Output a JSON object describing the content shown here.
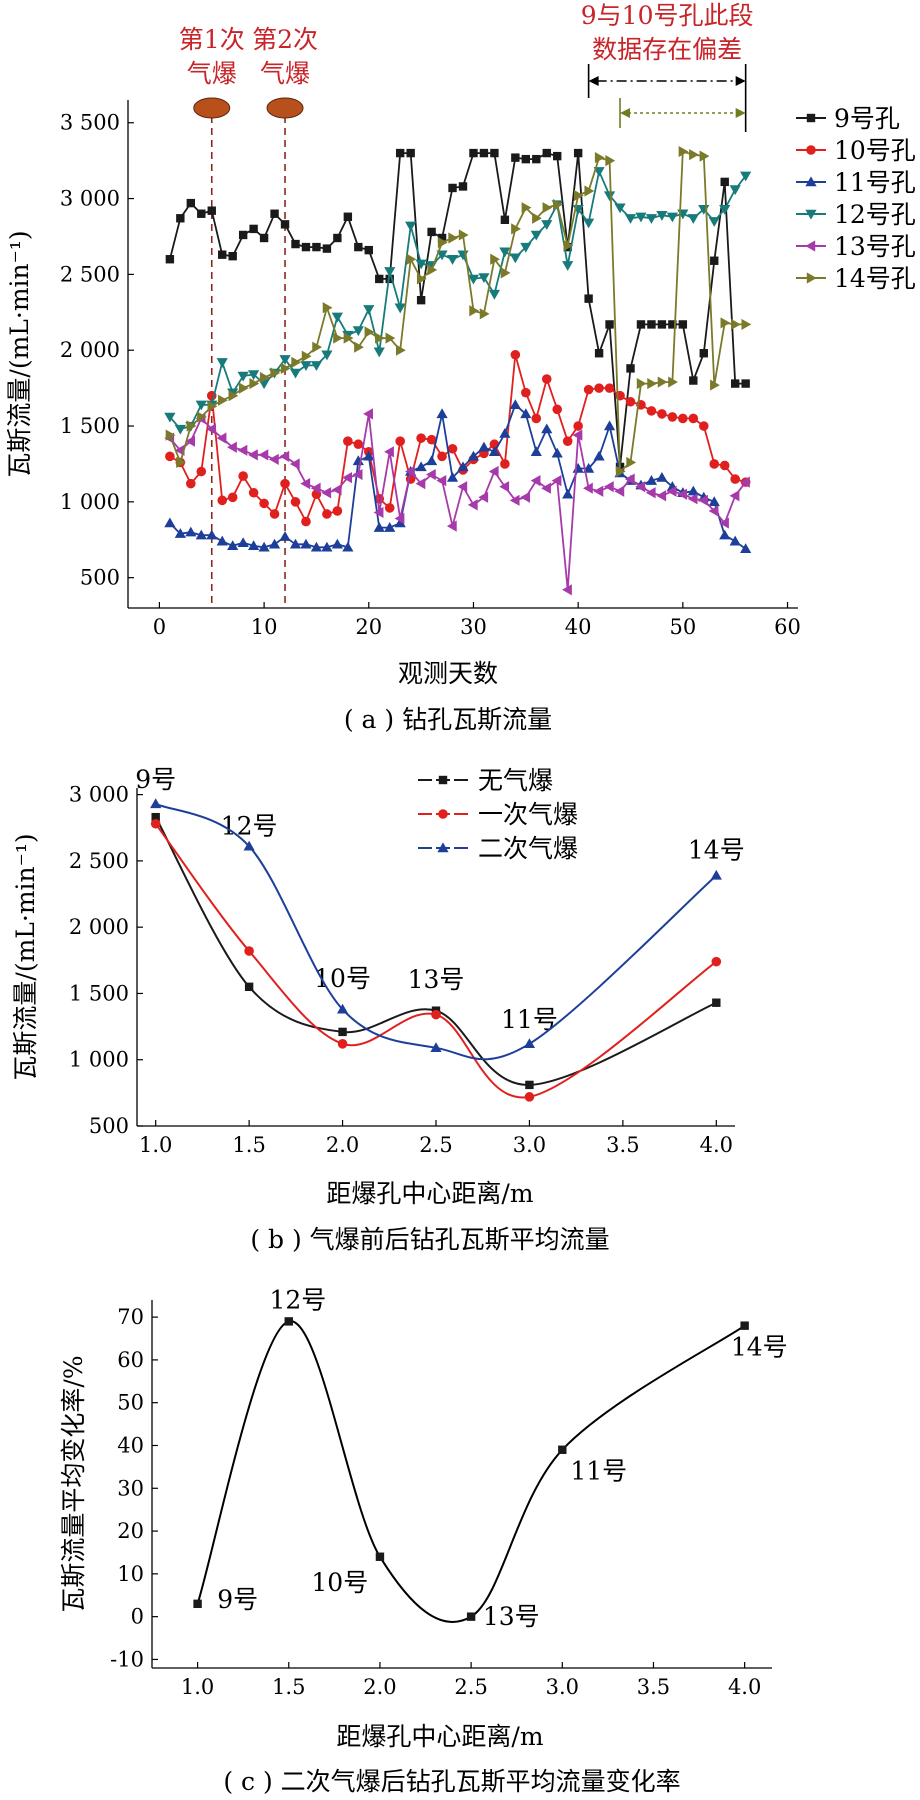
{
  "chart_data": [
    {
      "panel": "a",
      "type": "line",
      "caption": "( a ) 钻孔瓦斯流量",
      "xlabel": "观测天数",
      "ylabel": "瓦斯流量/(mL·min⁻¹)",
      "xlim": [
        -3,
        61
      ],
      "ylim": [
        300,
        3650
      ],
      "xticks": [
        0,
        10,
        20,
        30,
        40,
        50,
        60
      ],
      "yticks": [
        500,
        1000,
        1500,
        2000,
        2500,
        3000,
        3500
      ],
      "ytick_labels": [
        "500",
        "1 000",
        "1 500",
        "2 000",
        "2 500",
        "3 000",
        "3 500"
      ],
      "legend_position": "right",
      "annotations": {
        "blast1_label": [
          "第1次",
          "气爆"
        ],
        "blast1_day": 5,
        "blast2_label": [
          "第2次",
          "气爆"
        ],
        "blast2_day": 12,
        "deviation_label": [
          "9与10号孔此段",
          "数据存在偏差"
        ],
        "deviation_range_outer": [
          41,
          56
        ],
        "deviation_range_inner": [
          44,
          56
        ]
      },
      "series": [
        {
          "name": "9号孔",
          "color": "#1a1a1a",
          "marker": "square",
          "x": [
            1,
            2,
            3,
            4,
            5,
            6,
            7,
            8,
            9,
            10,
            11,
            12,
            13,
            14,
            15,
            16,
            17,
            18,
            19,
            20,
            21,
            22,
            23,
            24,
            25,
            26,
            27,
            28,
            29,
            30,
            31,
            32,
            33,
            34,
            35,
            36,
            37,
            38,
            39,
            40,
            41,
            42,
            43,
            44,
            45,
            46,
            47,
            48,
            49,
            50,
            51,
            52,
            53,
            54,
            55,
            56
          ],
          "y": [
            2600,
            2870,
            2970,
            2900,
            2920,
            2630,
            2620,
            2760,
            2800,
            2740,
            2900,
            2830,
            2700,
            2680,
            2680,
            2670,
            2740,
            2880,
            2680,
            2660,
            2470,
            2470,
            3300,
            3300,
            2330,
            2780,
            2740,
            3070,
            3080,
            3300,
            3300,
            3300,
            2860,
            3270,
            3260,
            3260,
            3300,
            3280,
            2680,
            3300,
            2340,
            1980,
            2170,
            1230,
            1880,
            2170,
            2170,
            2170,
            2170,
            2170,
            1800,
            1980,
            2590,
            3110,
            1780,
            1780
          ]
        },
        {
          "name": "10号孔",
          "color": "#e0201e",
          "marker": "circle",
          "x": [
            1,
            2,
            3,
            4,
            5,
            6,
            7,
            8,
            9,
            10,
            11,
            12,
            13,
            14,
            15,
            16,
            17,
            18,
            19,
            20,
            21,
            22,
            23,
            24,
            25,
            26,
            27,
            28,
            29,
            30,
            31,
            32,
            33,
            34,
            35,
            36,
            37,
            38,
            39,
            40,
            41,
            42,
            43,
            44,
            45,
            46,
            47,
            48,
            49,
            50,
            51,
            52,
            53,
            54,
            55,
            56
          ],
          "y": [
            1300,
            1260,
            1120,
            1200,
            1700,
            1010,
            1030,
            1170,
            1060,
            990,
            920,
            1120,
            1000,
            870,
            1050,
            920,
            940,
            1400,
            1380,
            1330,
            1020,
            960,
            1400,
            1150,
            1420,
            1410,
            1300,
            1350,
            1210,
            1280,
            1320,
            1380,
            1250,
            1970,
            1720,
            1550,
            1810,
            1610,
            1400,
            1500,
            1740,
            1750,
            1750,
            1700,
            1660,
            1640,
            1600,
            1580,
            1560,
            1550,
            1550,
            1500,
            1250,
            1240,
            1150,
            1130
          ]
        },
        {
          "name": "11号孔",
          "color": "#1d3f9a",
          "marker": "triangle-up",
          "x": [
            1,
            2,
            3,
            4,
            5,
            6,
            7,
            8,
            9,
            10,
            11,
            12,
            13,
            14,
            15,
            16,
            17,
            18,
            19,
            20,
            21,
            22,
            23,
            24,
            25,
            26,
            27,
            28,
            29,
            30,
            31,
            32,
            33,
            34,
            35,
            36,
            37,
            38,
            39,
            40,
            41,
            42,
            43,
            44,
            45,
            46,
            47,
            48,
            49,
            50,
            51,
            52,
            53,
            54,
            55,
            56
          ],
          "y": [
            860,
            790,
            800,
            780,
            780,
            740,
            710,
            730,
            710,
            700,
            720,
            770,
            720,
            720,
            700,
            700,
            720,
            700,
            1270,
            1300,
            830,
            830,
            860,
            1200,
            1230,
            1270,
            1580,
            1160,
            1230,
            1300,
            1360,
            1330,
            1450,
            1640,
            1580,
            1330,
            1480,
            1320,
            1050,
            1220,
            1220,
            1300,
            1500,
            1190,
            1140,
            1110,
            1140,
            1160,
            1100,
            1060,
            1070,
            1030,
            1000,
            780,
            740,
            690
          ]
        },
        {
          "name": "12号孔",
          "color": "#187b7b",
          "marker": "triangle-down",
          "x": [
            1,
            2,
            3,
            4,
            5,
            6,
            7,
            8,
            9,
            10,
            11,
            12,
            13,
            14,
            15,
            16,
            17,
            18,
            19,
            20,
            21,
            22,
            23,
            24,
            25,
            26,
            27,
            28,
            29,
            30,
            31,
            32,
            33,
            34,
            35,
            36,
            37,
            38,
            39,
            40,
            41,
            42,
            43,
            44,
            45,
            46,
            47,
            48,
            49,
            50,
            51,
            52,
            53,
            54,
            55,
            56
          ],
          "y": [
            1560,
            1480,
            1500,
            1640,
            1640,
            1920,
            1720,
            1830,
            1840,
            1780,
            1850,
            1940,
            1850,
            1900,
            1900,
            1970,
            2220,
            2100,
            2130,
            2270,
            1990,
            2520,
            2280,
            2820,
            2570,
            2560,
            2630,
            2600,
            2630,
            2470,
            2480,
            2370,
            2650,
            2610,
            2680,
            2760,
            2830,
            2960,
            2560,
            2930,
            2840,
            3180,
            3020,
            2940,
            2870,
            2880,
            2870,
            2890,
            2880,
            2900,
            2870,
            2930,
            2850,
            2930,
            3060,
            3150
          ]
        },
        {
          "name": "13号孔",
          "color": "#a63aaa",
          "marker": "triangle-left",
          "x": [
            1,
            2,
            3,
            4,
            5,
            6,
            7,
            8,
            9,
            10,
            11,
            12,
            13,
            14,
            15,
            16,
            17,
            18,
            19,
            20,
            21,
            22,
            23,
            24,
            25,
            26,
            27,
            28,
            29,
            30,
            31,
            32,
            33,
            34,
            35,
            36,
            37,
            38,
            39,
            40,
            41,
            42,
            43,
            44,
            45,
            46,
            47,
            48,
            49,
            50,
            51,
            52,
            53,
            54,
            55,
            56
          ],
          "y": [
            1420,
            1340,
            1400,
            1550,
            1480,
            1420,
            1360,
            1340,
            1310,
            1310,
            1280,
            1300,
            1250,
            1120,
            1090,
            1060,
            1080,
            1160,
            1180,
            1580,
            930,
            1330,
            890,
            1200,
            1120,
            1180,
            1140,
            840,
            1100,
            980,
            1030,
            1200,
            1100,
            1010,
            1030,
            1140,
            1090,
            1140,
            420,
            1440,
            1090,
            1070,
            1100,
            1070,
            1150,
            1100,
            1060,
            1040,
            1070,
            1050,
            1020,
            1010,
            940,
            860,
            1040,
            1130
          ]
        },
        {
          "name": "14号孔",
          "color": "#7a7a2a",
          "marker": "triangle-right",
          "x": [
            1,
            2,
            3,
            4,
            5,
            6,
            7,
            8,
            9,
            10,
            11,
            12,
            13,
            14,
            15,
            16,
            17,
            18,
            19,
            20,
            21,
            22,
            23,
            24,
            25,
            26,
            27,
            28,
            29,
            30,
            31,
            32,
            33,
            34,
            35,
            36,
            37,
            38,
            39,
            40,
            41,
            42,
            43,
            44,
            45,
            46,
            47,
            48,
            49,
            50,
            51,
            52,
            53,
            54,
            55,
            56
          ],
          "y": [
            1440,
            1260,
            1500,
            1560,
            1630,
            1670,
            1700,
            1750,
            1780,
            1820,
            1850,
            1880,
            1920,
            1960,
            2020,
            2280,
            2080,
            2080,
            2020,
            2120,
            2080,
            2080,
            2000,
            2600,
            2470,
            2530,
            2710,
            2740,
            2760,
            2260,
            2240,
            2600,
            2510,
            2800,
            2940,
            2870,
            2940,
            2960,
            2690,
            3020,
            3050,
            3270,
            3250,
            1200,
            1260,
            1780,
            1780,
            1790,
            1790,
            3310,
            3290,
            3280,
            1770,
            2180,
            2170,
            2170
          ]
        }
      ]
    },
    {
      "panel": "b",
      "type": "line",
      "caption": "( b ) 气爆前后钻孔瓦斯平均流量",
      "xlabel": "距爆孔中心距离/m",
      "ylabel": "瓦斯流量/(mL·min⁻¹)",
      "xlim": [
        0.9,
        4.1
      ],
      "ylim": [
        500,
        3050
      ],
      "xticks": [
        1.0,
        1.5,
        2.0,
        2.5,
        3.0,
        3.5,
        4.0
      ],
      "xtick_labels": [
        "1.0",
        "1.5",
        "2.0",
        "2.5",
        "3.0",
        "3.5",
        "4.0"
      ],
      "yticks": [
        500,
        1000,
        1500,
        2000,
        2500,
        3000
      ],
      "ytick_labels": [
        "500",
        "1 000",
        "1 500",
        "2 000",
        "2 500",
        "3 000"
      ],
      "legend_position": "top-center",
      "x": [
        1.0,
        1.5,
        2.0,
        2.5,
        3.0,
        4.0
      ],
      "point_labels": [
        {
          "text": "9号",
          "x": 1.0,
          "y": 3050
        },
        {
          "text": "12号",
          "x": 1.5,
          "y": 2700
        },
        {
          "text": "10号",
          "x": 2.0,
          "y": 1550
        },
        {
          "text": "13号",
          "x": 2.5,
          "y": 1540
        },
        {
          "text": "11号",
          "x": 3.0,
          "y": 1240
        },
        {
          "text": "14号",
          "x": 4.0,
          "y": 2520
        }
      ],
      "series": [
        {
          "name": "无气爆",
          "color": "#1a1a1a",
          "marker": "square",
          "y": [
            2830,
            1550,
            1210,
            1370,
            810,
            1430
          ]
        },
        {
          "name": "一次气爆",
          "color": "#e0201e",
          "marker": "circle",
          "y": [
            2780,
            1820,
            1120,
            1340,
            720,
            1740
          ]
        },
        {
          "name": "二次气爆",
          "color": "#1d3f9a",
          "marker": "triangle-up",
          "y": [
            2930,
            2610,
            1380,
            1090,
            1120,
            2390
          ]
        }
      ]
    },
    {
      "panel": "c",
      "type": "line",
      "caption": "( c ) 二次气爆后钻孔瓦斯平均流量变化率",
      "xlabel": "距爆孔中心距离/m",
      "ylabel": "瓦斯流量平均变化率/%",
      "xlim": [
        0.75,
        4.15
      ],
      "ylim": [
        -12,
        74
      ],
      "xticks": [
        1.0,
        1.5,
        2.0,
        2.5,
        3.0,
        3.5,
        4.0
      ],
      "xtick_labels": [
        "1.0",
        "1.5",
        "2.0",
        "2.5",
        "3.0",
        "3.5",
        "4.0"
      ],
      "yticks": [
        -10,
        0,
        10,
        20,
        30,
        40,
        50,
        60,
        70
      ],
      "x": [
        1.0,
        1.5,
        2.0,
        2.5,
        3.0,
        4.0
      ],
      "y": [
        3,
        69,
        14,
        0,
        39,
        68
      ],
      "point_labels": [
        {
          "text": "9号",
          "x": 1.22,
          "y": 2
        },
        {
          "text": "12号",
          "x": 1.55,
          "y": 72
        },
        {
          "text": "10号",
          "x": 1.78,
          "y": 6
        },
        {
          "text": "13号",
          "x": 2.72,
          "y": -2
        },
        {
          "text": "11号",
          "x": 3.2,
          "y": 32
        },
        {
          "text": "14号",
          "x": 4.08,
          "y": 61
        }
      ]
    }
  ]
}
